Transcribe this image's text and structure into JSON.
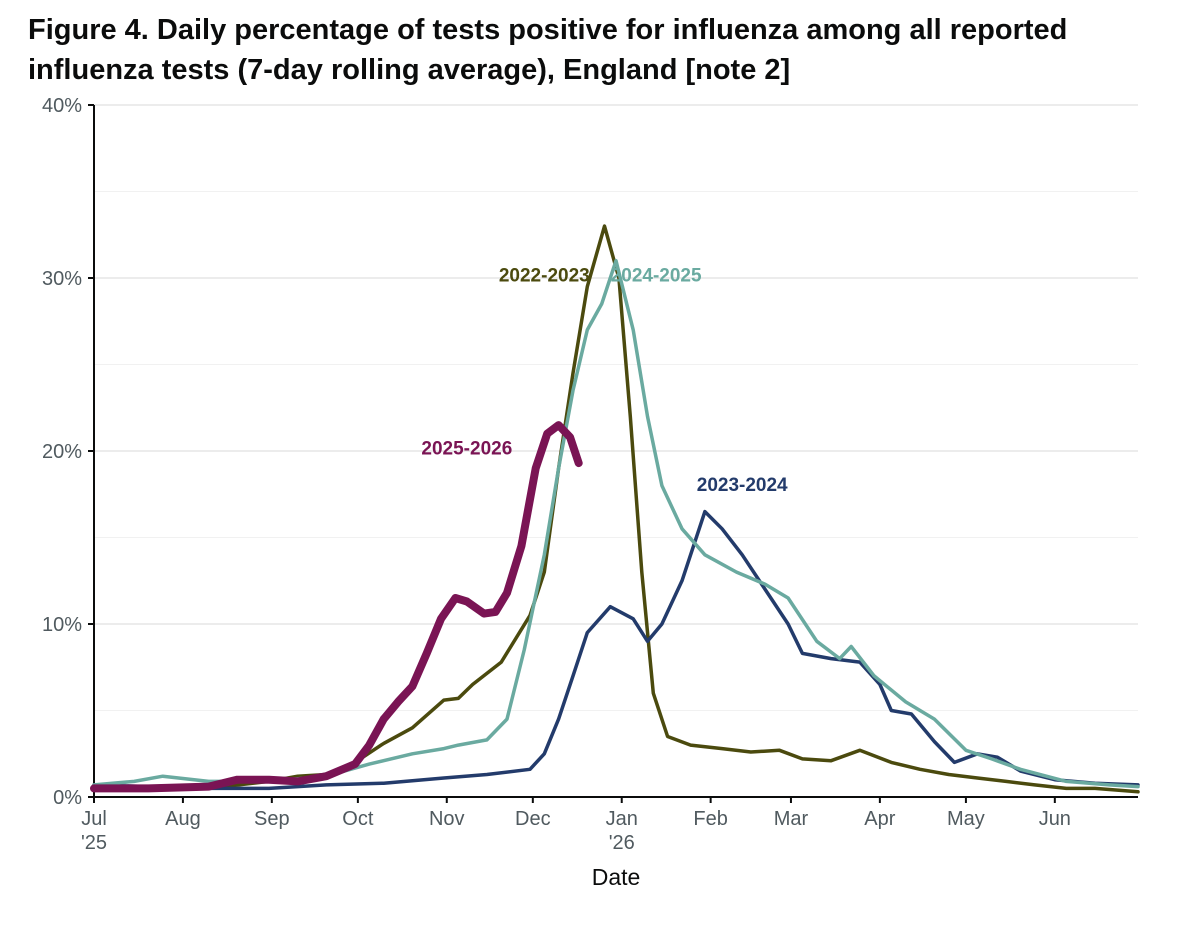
{
  "chart_data": {
    "type": "line",
    "title": "Figure 4. Daily percentage of tests positive for influenza among all reported influenza tests (7-day rolling average), England [note 2]",
    "xlabel": "Date",
    "ylabel": "",
    "xlim": [
      "2025-07-01",
      "2026-06-30"
    ],
    "ylim": [
      0,
      40
    ],
    "y_tick_values": [
      0,
      10,
      20,
      30,
      40
    ],
    "y_tick_labels": [
      "0%",
      "10%",
      "20%",
      "30%",
      "40%"
    ],
    "x_ticks": [
      {
        "date": "2025-07-01",
        "label": "Jul",
        "sub": "'25"
      },
      {
        "date": "2025-08-01",
        "label": "Aug",
        "sub": ""
      },
      {
        "date": "2025-09-01",
        "label": "Sep",
        "sub": ""
      },
      {
        "date": "2025-10-01",
        "label": "Oct",
        "sub": ""
      },
      {
        "date": "2025-11-01",
        "label": "Nov",
        "sub": ""
      },
      {
        "date": "2025-12-01",
        "label": "Dec",
        "sub": ""
      },
      {
        "date": "2026-01-01",
        "label": "Jan",
        "sub": "'26"
      },
      {
        "date": "2026-02-01",
        "label": "Feb",
        "sub": ""
      },
      {
        "date": "2026-03-01",
        "label": "Mar",
        "sub": ""
      },
      {
        "date": "2026-04-01",
        "label": "Apr",
        "sub": ""
      },
      {
        "date": "2026-05-01",
        "label": "May",
        "sub": ""
      },
      {
        "date": "2026-06-01",
        "label": "Jun",
        "sub": ""
      }
    ],
    "grid": true,
    "legend": "none",
    "series": [
      {
        "name": "2022-2023",
        "color": "#4b4a0e",
        "data": [
          [
            "2025-07-01",
            0.5
          ],
          [
            "2025-07-15",
            0.6
          ],
          [
            "2025-07-31",
            0.5
          ],
          [
            "2025-08-15",
            0.6
          ],
          [
            "2025-08-31",
            0.9
          ],
          [
            "2025-09-10",
            1.2
          ],
          [
            "2025-09-20",
            1.3
          ],
          [
            "2025-09-30",
            2.0
          ],
          [
            "2025-10-10",
            3.1
          ],
          [
            "2025-10-20",
            4.0
          ],
          [
            "2025-10-31",
            5.6
          ],
          [
            "2025-11-05",
            5.7
          ],
          [
            "2025-11-10",
            6.5
          ],
          [
            "2025-11-20",
            7.8
          ],
          [
            "2025-11-30",
            10.5
          ],
          [
            "2025-12-05",
            13.0
          ],
          [
            "2025-12-10",
            19.0
          ],
          [
            "2025-12-15",
            24.5
          ],
          [
            "2025-12-20",
            29.5
          ],
          [
            "2025-12-26",
            33.0
          ],
          [
            "2025-12-31",
            30.0
          ],
          [
            "2026-01-04",
            22.0
          ],
          [
            "2026-01-08",
            13.0
          ],
          [
            "2026-01-12",
            6.0
          ],
          [
            "2026-01-17",
            3.5
          ],
          [
            "2026-01-25",
            3.0
          ],
          [
            "2026-02-05",
            2.8
          ],
          [
            "2026-02-15",
            2.6
          ],
          [
            "2026-02-25",
            2.7
          ],
          [
            "2026-03-05",
            2.2
          ],
          [
            "2026-03-15",
            2.1
          ],
          [
            "2026-03-25",
            2.7
          ],
          [
            "2026-04-05",
            2.0
          ],
          [
            "2026-04-15",
            1.6
          ],
          [
            "2026-04-25",
            1.3
          ],
          [
            "2026-05-05",
            1.1
          ],
          [
            "2026-05-15",
            0.9
          ],
          [
            "2026-05-25",
            0.7
          ],
          [
            "2026-06-05",
            0.5
          ],
          [
            "2026-06-15",
            0.5
          ],
          [
            "2026-06-30",
            0.3
          ]
        ]
      },
      {
        "name": "2023-2024",
        "color": "#233b6b",
        "data": [
          [
            "2025-07-01",
            0.7
          ],
          [
            "2025-07-20",
            0.6
          ],
          [
            "2025-08-10",
            0.5
          ],
          [
            "2025-08-31",
            0.5
          ],
          [
            "2025-09-20",
            0.7
          ],
          [
            "2025-10-10",
            0.8
          ],
          [
            "2025-10-31",
            1.1
          ],
          [
            "2025-11-15",
            1.3
          ],
          [
            "2025-11-30",
            1.6
          ],
          [
            "2025-12-05",
            2.5
          ],
          [
            "2025-12-10",
            4.5
          ],
          [
            "2025-12-15",
            7.0
          ],
          [
            "2025-12-20",
            9.5
          ],
          [
            "2025-12-28",
            11.0
          ],
          [
            "2026-01-05",
            10.3
          ],
          [
            "2026-01-10",
            9.0
          ],
          [
            "2026-01-15",
            10.0
          ],
          [
            "2026-01-22",
            12.5
          ],
          [
            "2026-01-30",
            16.5
          ],
          [
            "2026-02-05",
            15.5
          ],
          [
            "2026-02-12",
            14.0
          ],
          [
            "2026-02-20",
            12.0
          ],
          [
            "2026-02-28",
            10.0
          ],
          [
            "2026-03-05",
            8.3
          ],
          [
            "2026-03-15",
            8.0
          ],
          [
            "2026-03-25",
            7.8
          ],
          [
            "2026-04-01",
            6.5
          ],
          [
            "2026-04-05",
            5.0
          ],
          [
            "2026-04-12",
            4.8
          ],
          [
            "2026-04-20",
            3.2
          ],
          [
            "2026-04-27",
            2.0
          ],
          [
            "2026-05-05",
            2.5
          ],
          [
            "2026-05-12",
            2.3
          ],
          [
            "2026-05-20",
            1.5
          ],
          [
            "2026-06-01",
            1.0
          ],
          [
            "2026-06-15",
            0.8
          ],
          [
            "2026-06-30",
            0.7
          ]
        ]
      },
      {
        "name": "2024-2025",
        "color": "#6aaaa0",
        "data": [
          [
            "2025-07-01",
            0.7
          ],
          [
            "2025-07-15",
            0.9
          ],
          [
            "2025-07-25",
            1.2
          ],
          [
            "2025-08-10",
            0.9
          ],
          [
            "2025-08-31",
            0.9
          ],
          [
            "2025-09-20",
            1.2
          ],
          [
            "2025-10-05",
            1.9
          ],
          [
            "2025-10-20",
            2.5
          ],
          [
            "2025-10-31",
            2.8
          ],
          [
            "2025-11-05",
            3.0
          ],
          [
            "2025-11-15",
            3.3
          ],
          [
            "2025-11-22",
            4.5
          ],
          [
            "2025-11-28",
            8.5
          ],
          [
            "2025-12-05",
            14.0
          ],
          [
            "2025-12-10",
            19.0
          ],
          [
            "2025-12-15",
            23.5
          ],
          [
            "2025-12-20",
            27.0
          ],
          [
            "2025-12-25",
            28.5
          ],
          [
            "2025-12-30",
            31.0
          ],
          [
            "2026-01-05",
            27.0
          ],
          [
            "2026-01-10",
            22.0
          ],
          [
            "2026-01-15",
            18.0
          ],
          [
            "2026-01-22",
            15.5
          ],
          [
            "2026-01-30",
            14.0
          ],
          [
            "2026-02-10",
            13.0
          ],
          [
            "2026-02-20",
            12.3
          ],
          [
            "2026-02-28",
            11.5
          ],
          [
            "2026-03-10",
            9.0
          ],
          [
            "2026-03-18",
            8.0
          ],
          [
            "2026-03-22",
            8.7
          ],
          [
            "2026-03-30",
            7.0
          ],
          [
            "2026-04-10",
            5.5
          ],
          [
            "2026-04-20",
            4.5
          ],
          [
            "2026-05-01",
            2.7
          ],
          [
            "2026-05-10",
            2.2
          ],
          [
            "2026-05-20",
            1.6
          ],
          [
            "2026-06-05",
            0.9
          ],
          [
            "2026-06-20",
            0.7
          ],
          [
            "2026-06-30",
            0.6
          ]
        ]
      },
      {
        "name": "2025-2026",
        "color": "#7a1454",
        "data": [
          [
            "2025-07-01",
            0.5
          ],
          [
            "2025-07-20",
            0.5
          ],
          [
            "2025-08-10",
            0.6
          ],
          [
            "2025-08-20",
            1.0
          ],
          [
            "2025-08-31",
            1.0
          ],
          [
            "2025-09-10",
            0.9
          ],
          [
            "2025-09-20",
            1.2
          ],
          [
            "2025-09-30",
            1.9
          ],
          [
            "2025-10-05",
            3.0
          ],
          [
            "2025-10-10",
            4.5
          ],
          [
            "2025-10-15",
            5.5
          ],
          [
            "2025-10-20",
            6.4
          ],
          [
            "2025-10-25",
            8.3
          ],
          [
            "2025-10-30",
            10.3
          ],
          [
            "2025-11-04",
            11.5
          ],
          [
            "2025-11-08",
            11.3
          ],
          [
            "2025-11-14",
            10.6
          ],
          [
            "2025-11-18",
            10.7
          ],
          [
            "2025-11-22",
            11.8
          ],
          [
            "2025-11-27",
            14.5
          ],
          [
            "2025-12-02",
            19.0
          ],
          [
            "2025-12-06",
            21.0
          ],
          [
            "2025-12-10",
            21.5
          ],
          [
            "2025-12-14",
            20.8
          ],
          [
            "2025-12-17",
            19.3
          ]
        ]
      }
    ],
    "annotations": [
      {
        "text": "2022-2023",
        "series": "2022-2023",
        "x": "2025-12-05",
        "y": 29.8
      },
      {
        "text": "2024-2025",
        "series": "2024-2025",
        "x": "2026-01-13",
        "y": 29.8
      },
      {
        "text": "2025-2026",
        "series": "2025-2026",
        "x": "2025-11-08",
        "y": 19.8
      },
      {
        "text": "2023-2024",
        "series": "2023-2024",
        "x": "2026-02-12",
        "y": 17.7
      }
    ]
  }
}
